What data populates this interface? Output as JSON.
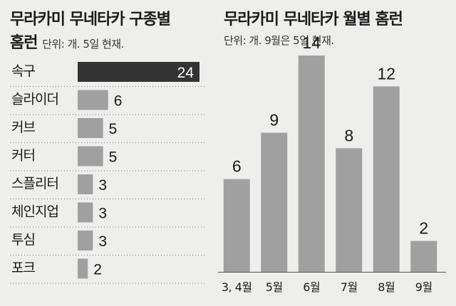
{
  "chart_data": [
    {
      "type": "bar",
      "orientation": "horizontal",
      "title": "무라카미 무네타카 구종별 홈런",
      "note": "단위: 개. 5일 현재.",
      "categories": [
        "속구",
        "슬라이더",
        "커브",
        "커터",
        "스플리터",
        "체인지업",
        "투심",
        "포크"
      ],
      "values": [
        24,
        6,
        5,
        5,
        3,
        3,
        3,
        2
      ],
      "highlight_color": "#333333",
      "bar_color": "#a0a0a0"
    },
    {
      "type": "bar",
      "orientation": "vertical",
      "title": "무라카미 무네타카 월별 홈런",
      "note": "단위: 개. 9월은 5일 현재.",
      "categories": [
        "3, 4월",
        "5월",
        "6월",
        "7월",
        "8월",
        "9월"
      ],
      "values": [
        6,
        9,
        14,
        8,
        12,
        2
      ],
      "bar_color": "#a0a0a0"
    }
  ]
}
